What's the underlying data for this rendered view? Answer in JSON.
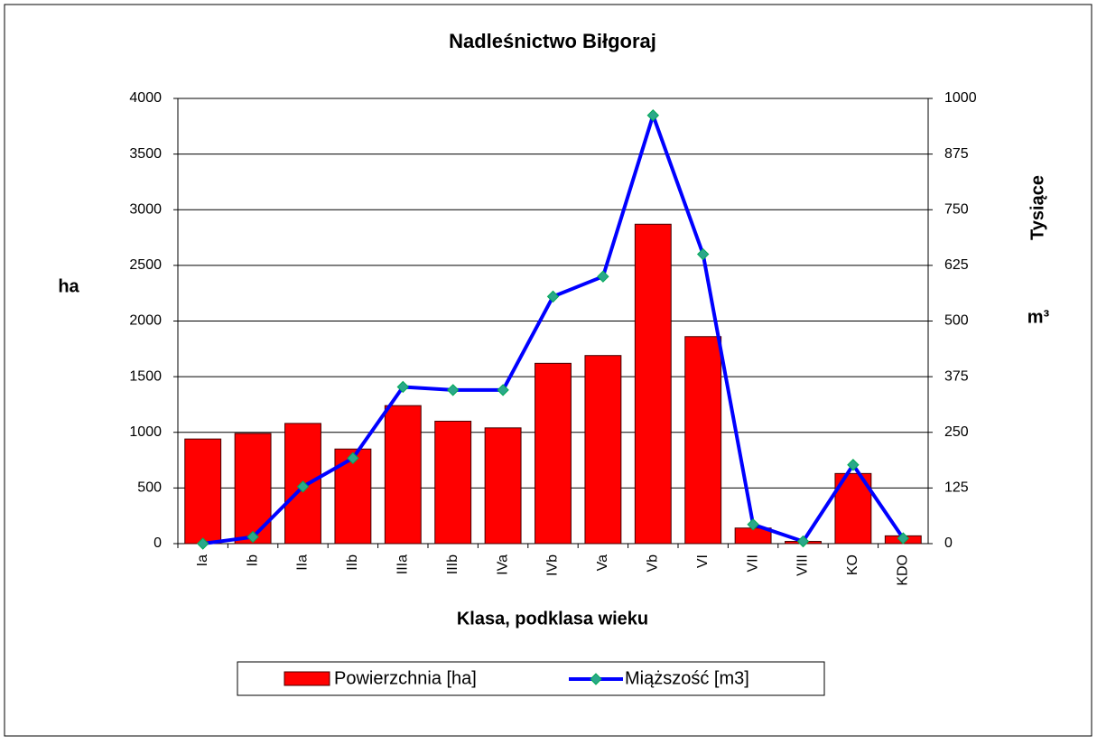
{
  "chart_data": {
    "type": "bar_line",
    "title": "Nadleśnictwo Biłgoraj",
    "x_label": "Klasa, podklasa wieku",
    "y_label": "ha",
    "y2_label": "Tysiące",
    "y2_unit": "m³",
    "categories": [
      "Ia",
      "Ib",
      "IIa",
      "IIb",
      "IIIa",
      "IIIb",
      "IVa",
      "IVb",
      "Va",
      "Vb",
      "VI",
      "VII",
      "VIII",
      "KO",
      "KDO"
    ],
    "series": [
      {
        "name": "Powierzchnia [ha]",
        "type": "bar",
        "color": "#ff0000",
        "values": [
          940,
          990,
          1080,
          850,
          1240,
          1100,
          1040,
          1620,
          1690,
          2870,
          1860,
          140,
          20,
          630,
          70
        ]
      },
      {
        "name": "Miąższość [m3]",
        "type": "line",
        "axis": "y2",
        "color": "#0000ff",
        "marker_color": "#2aa88a",
        "values": [
          0,
          15,
          128,
          192,
          352,
          345,
          345,
          555,
          600,
          962,
          650,
          43,
          5,
          177,
          12
        ]
      }
    ],
    "ylim": [
      0,
      4000
    ],
    "yticks": [
      0,
      500,
      1000,
      1500,
      2000,
      2500,
      3000,
      3500,
      4000
    ],
    "y2lim": [
      0,
      1000
    ],
    "y2ticks": [
      0,
      125,
      250,
      375,
      500,
      625,
      750,
      875,
      1000
    ],
    "grid": true,
    "legend": "bottom"
  }
}
